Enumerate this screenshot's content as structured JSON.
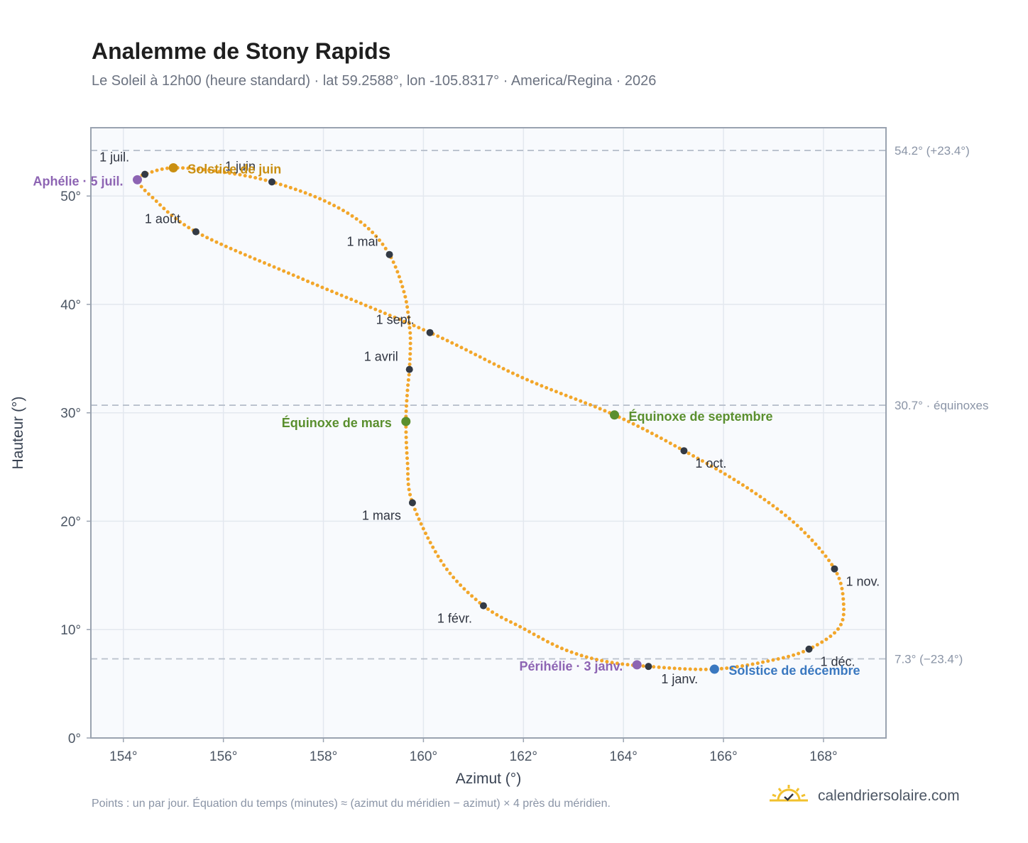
{
  "header": {
    "title": "Analemme de Stony Rapids",
    "subtitle": "Le Soleil à 12h00 (heure standard) · lat 59.2588°, lon -105.8317° · America/Regina · 2026"
  },
  "footer": {
    "note": "Points : un par jour. Équation du temps (minutes) ≈ (azimut du méridien − azimut) × 4 près du méridien.",
    "brand": "calendriersolaire.com",
    "brand_icon": "sun-check-icon"
  },
  "colors": {
    "curve": "#f2a62a",
    "month_marker": "#333a45",
    "solstice_june": "#c98f12",
    "solstice_december": "#3a78c0",
    "equinox": "#5a8f2e",
    "apsis": "#8d64b3",
    "reference_line": "#b8c0cc",
    "plot_bg": "#f8fafd",
    "plot_border": "#9aa3b0"
  },
  "chart_data": {
    "type": "scatter",
    "title": "Analemme de Stony Rapids",
    "xlabel": "Azimut (°)",
    "ylabel": "Hauteur (°)",
    "xlim": [
      153.35,
      169.25
    ],
    "ylim": [
      0,
      56.3
    ],
    "xticks": [
      154,
      156,
      158,
      160,
      162,
      164,
      166,
      168
    ],
    "xtick_labels": [
      "154°",
      "156°",
      "158°",
      "160°",
      "162°",
      "164°",
      "166°",
      "168°"
    ],
    "yticks": [
      0,
      10,
      20,
      30,
      40,
      50
    ],
    "ytick_labels": [
      "0°",
      "10°",
      "20°",
      "30°",
      "40°",
      "50°"
    ],
    "grid": true,
    "curve_path": [
      [
        164.5,
        6.6
      ],
      [
        163.6,
        7.1
      ],
      [
        162.8,
        8.2
      ],
      [
        162.0,
        10.1
      ],
      [
        161.2,
        12.2
      ],
      [
        160.4,
        16.0
      ],
      [
        159.78,
        21.7
      ],
      [
        159.68,
        25.5
      ],
      [
        159.65,
        29.2
      ],
      [
        159.68,
        32.0
      ],
      [
        159.72,
        34.0
      ],
      [
        159.74,
        36.5
      ],
      [
        159.72,
        38.0
      ],
      [
        159.62,
        41.0
      ],
      [
        159.32,
        44.6
      ],
      [
        158.8,
        47.4
      ],
      [
        158.0,
        49.6
      ],
      [
        156.97,
        51.3
      ],
      [
        156.0,
        52.2
      ],
      [
        155.0,
        52.6
      ],
      [
        154.43,
        52.0
      ],
      [
        154.28,
        51.5
      ],
      [
        154.55,
        50.0
      ],
      [
        155.45,
        46.7
      ],
      [
        157.5,
        42.5
      ],
      [
        160.13,
        37.4
      ],
      [
        162.0,
        33.2
      ],
      [
        163.82,
        29.8
      ],
      [
        165.21,
        26.5
      ],
      [
        166.5,
        23.0
      ],
      [
        167.5,
        19.5
      ],
      [
        168.22,
        15.6
      ],
      [
        168.4,
        12.5
      ],
      [
        168.3,
        10.1
      ],
      [
        167.71,
        8.2
      ],
      [
        167.0,
        7.2
      ],
      [
        165.82,
        6.35
      ],
      [
        164.5,
        6.6
      ]
    ],
    "months": [
      {
        "label": "1 janv.",
        "x": 164.5,
        "y": 6.6
      },
      {
        "label": "1 févr.",
        "x": 161.2,
        "y": 12.2
      },
      {
        "label": "1 mars",
        "x": 159.78,
        "y": 21.7
      },
      {
        "label": "1 avril",
        "x": 159.72,
        "y": 34.0
      },
      {
        "label": "1 mai",
        "x": 159.32,
        "y": 44.6
      },
      {
        "label": "1 juin",
        "x": 156.97,
        "y": 51.3
      },
      {
        "label": "1 juil.",
        "x": 154.43,
        "y": 52.0
      },
      {
        "label": "1 août",
        "x": 155.45,
        "y": 46.7
      },
      {
        "label": "1 sept.",
        "x": 160.13,
        "y": 37.4
      },
      {
        "label": "1 oct.",
        "x": 165.21,
        "y": 26.5
      },
      {
        "label": "1 nov.",
        "x": 168.22,
        "y": 15.6
      },
      {
        "label": "1 déc.",
        "x": 167.71,
        "y": 8.2
      }
    ],
    "events": [
      {
        "label": "Solstice de juin",
        "x": 155.0,
        "y": 52.6,
        "kind": "solstice_june"
      },
      {
        "label": "Solstice de décembre",
        "x": 165.82,
        "y": 6.35,
        "kind": "solstice_december"
      },
      {
        "label": "Équinoxe de mars",
        "x": 159.65,
        "y": 29.2,
        "kind": "equinox"
      },
      {
        "label": "Équinoxe de septembre",
        "x": 163.82,
        "y": 29.8,
        "kind": "equinox"
      },
      {
        "label": "Aphélie · 5 juil.",
        "x": 154.28,
        "y": 51.5,
        "kind": "apsis"
      },
      {
        "label": "Périhélie · 3 janv.",
        "x": 164.27,
        "y": 6.75,
        "kind": "apsis"
      }
    ],
    "reference_lines": [
      {
        "y": 54.2,
        "label": "54.2° (+23.4°)"
      },
      {
        "y": 30.7,
        "label": "30.7° · équinoxes"
      },
      {
        "y": 7.3,
        "label": "7.3° (−23.4°)"
      }
    ]
  }
}
